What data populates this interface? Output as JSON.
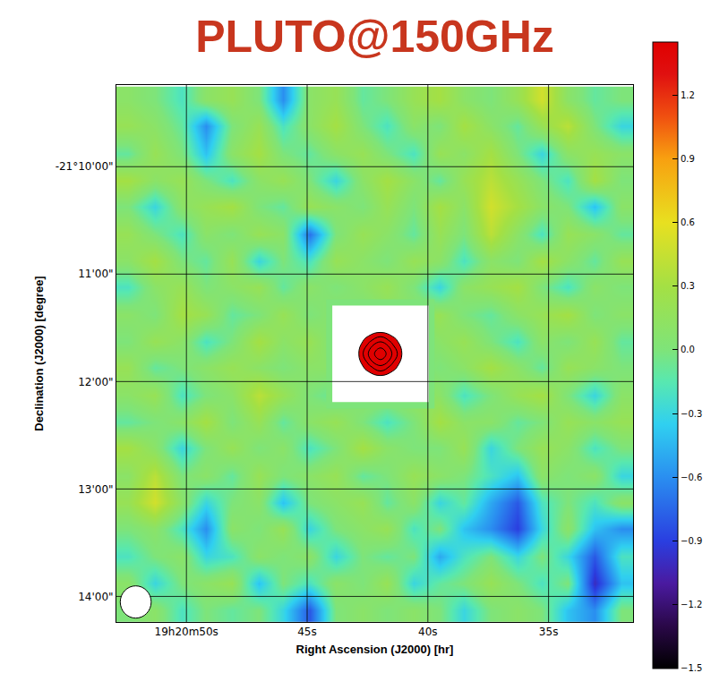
{
  "chart_data": {
    "type": "heatmap",
    "title": "PLUTO@150GHz",
    "x_label": "Right Ascension (J2000) [hr]",
    "y_label": "Declination (J2000) [degree]",
    "xlim": [
      52.9,
      31.5
    ],
    "ylim": [
      -21.2373,
      -21.154
    ],
    "xticks": [
      {
        "value": 50,
        "label": "19h20m50s"
      },
      {
        "value": 45,
        "label": "45s"
      },
      {
        "value": 40,
        "label": "40s"
      },
      {
        "value": 35,
        "label": "35s"
      }
    ],
    "yticks": [
      {
        "value": -21.166667,
        "label": "-21°10'00\""
      },
      {
        "value": -21.183333,
        "label": "11'00\""
      },
      {
        "value": -21.2,
        "label": "12'00\""
      },
      {
        "value": -21.216667,
        "label": "13'00\""
      },
      {
        "value": -21.233333,
        "label": "14'00\""
      }
    ],
    "grid": true,
    "x": [
      52.4,
      51.3,
      50.2,
      49.2,
      48.1,
      47.0,
      46.0,
      44.9,
      43.8,
      42.7,
      41.7,
      40.6,
      39.5,
      38.5,
      37.4,
      36.3,
      35.3,
      34.2,
      33.1,
      32.0
    ],
    "y": [
      -21.1563,
      -21.1604,
      -21.1646,
      -21.1688,
      -21.1729,
      -21.1771,
      -21.1813,
      -21.1854,
      -21.1896,
      -21.1938,
      -21.1979,
      -21.2021,
      -21.2063,
      -21.2104,
      -21.2146,
      -21.2188,
      -21.2229,
      -21.2271,
      -21.2313,
      -21.2354
    ],
    "z": [
      [
        0.1,
        0.0,
        -0.2,
        0.1,
        0.2,
        0.0,
        -0.6,
        0.1,
        0.2,
        -0.1,
        0.0,
        0.2,
        0.3,
        0.1,
        0.0,
        0.2,
        0.5,
        0.1,
        -0.1,
        0.0
      ],
      [
        0.2,
        0.1,
        -0.1,
        -0.6,
        0.0,
        0.2,
        -0.2,
        0.1,
        0.3,
        0.0,
        -0.2,
        0.1,
        0.0,
        0.3,
        0.1,
        -0.1,
        0.2,
        0.4,
        0.0,
        -0.3
      ],
      [
        -0.1,
        0.2,
        0.0,
        -0.4,
        0.1,
        0.3,
        0.0,
        -0.1,
        0.1,
        0.2,
        0.0,
        -0.2,
        0.2,
        0.1,
        0.3,
        0.0,
        -0.3,
        0.1,
        0.2,
        0.1
      ],
      [
        0.3,
        0.1,
        0.2,
        0.0,
        -0.2,
        0.1,
        0.2,
        0.0,
        -0.3,
        0.1,
        0.3,
        0.1,
        -0.1,
        0.2,
        0.4,
        0.2,
        0.0,
        -0.2,
        0.3,
        0.0
      ],
      [
        0.0,
        -0.3,
        0.1,
        0.2,
        0.3,
        0.0,
        -0.1,
        0.2,
        0.1,
        0.0,
        0.2,
        0.0,
        0.3,
        0.1,
        0.5,
        0.3,
        0.1,
        0.0,
        -0.4,
        0.1
      ],
      [
        0.2,
        0.0,
        -0.2,
        0.1,
        0.0,
        0.2,
        0.1,
        -0.7,
        0.0,
        0.2,
        0.1,
        -0.1,
        0.2,
        0.0,
        0.4,
        0.1,
        -0.2,
        0.2,
        0.1,
        -0.1
      ],
      [
        0.1,
        0.3,
        0.0,
        -0.1,
        0.2,
        -0.3,
        0.0,
        -0.2,
        0.2,
        0.1,
        0.0,
        0.2,
        0.1,
        -0.2,
        0.1,
        0.0,
        0.3,
        0.1,
        -0.1,
        0.2
      ],
      [
        -0.2,
        0.1,
        0.2,
        0.0,
        0.1,
        0.2,
        -0.1,
        0.1,
        0.0,
        0.1,
        0.2,
        0.0,
        -0.3,
        0.1,
        0.2,
        0.3,
        0.0,
        -0.2,
        0.1,
        0.0
      ],
      [
        0.1,
        0.0,
        0.3,
        0.2,
        -0.1,
        0.0,
        0.2,
        0.0,
        0.1,
        0.0,
        0.1,
        0.1,
        0.2,
        0.0,
        -0.1,
        0.1,
        0.2,
        0.3,
        0.0,
        0.1
      ],
      [
        0.0,
        0.2,
        0.1,
        -0.2,
        0.0,
        0.3,
        0.1,
        0.2,
        0.0,
        0.0,
        0.0,
        0.0,
        0.1,
        0.2,
        0.0,
        -0.2,
        0.1,
        0.0,
        0.2,
        -0.1
      ],
      [
        0.2,
        -0.1,
        0.0,
        0.1,
        0.2,
        0.1,
        0.0,
        0.1,
        0.1,
        0.0,
        0.0,
        0.1,
        0.0,
        0.1,
        0.3,
        0.1,
        -0.1,
        0.2,
        0.1,
        0.0
      ],
      [
        0.1,
        0.2,
        -0.2,
        0.0,
        0.1,
        0.4,
        0.2,
        0.0,
        -0.1,
        0.1,
        0.1,
        0.2,
        0.1,
        -0.2,
        0.0,
        0.2,
        0.3,
        0.0,
        -0.3,
        0.1
      ],
      [
        -0.1,
        0.0,
        0.1,
        0.3,
        0.0,
        0.2,
        -0.1,
        0.1,
        0.2,
        0.0,
        -0.2,
        0.0,
        0.3,
        0.1,
        0.1,
        -0.1,
        0.0,
        0.2,
        0.1,
        0.2
      ],
      [
        0.3,
        0.1,
        -0.3,
        0.0,
        0.2,
        0.0,
        0.1,
        -0.2,
        0.0,
        0.3,
        0.1,
        0.0,
        0.0,
        0.2,
        -0.3,
        0.0,
        0.2,
        0.1,
        -0.2,
        0.0
      ],
      [
        0.1,
        0.4,
        0.0,
        0.1,
        -0.1,
        0.2,
        0.0,
        0.1,
        0.2,
        -0.1,
        0.0,
        0.2,
        0.1,
        0.0,
        -0.2,
        -0.4,
        0.1,
        0.0,
        0.1,
        -0.3
      ],
      [
        0.2,
        0.5,
        0.1,
        -0.3,
        0.0,
        0.1,
        -0.4,
        0.0,
        0.1,
        0.2,
        -0.1,
        0.1,
        -0.3,
        -0.1,
        -0.5,
        -0.8,
        -0.2,
        0.0,
        -0.2,
        0.1
      ],
      [
        0.0,
        0.1,
        -0.2,
        -0.6,
        0.1,
        0.0,
        0.2,
        -0.3,
        0.0,
        0.1,
        0.2,
        -0.2,
        0.0,
        -0.4,
        -0.6,
        -0.9,
        -0.3,
        0.1,
        -0.4,
        -0.6
      ],
      [
        -0.2,
        0.0,
        0.1,
        -0.3,
        -0.2,
        0.1,
        0.0,
        0.1,
        -0.3,
        0.0,
        -0.1,
        0.0,
        -0.5,
        -0.2,
        0.0,
        -0.3,
        0.0,
        -0.3,
        -0.8,
        -0.2
      ],
      [
        0.1,
        -0.3,
        0.0,
        0.1,
        0.2,
        -0.4,
        0.0,
        -0.2,
        0.1,
        0.0,
        0.2,
        -0.3,
        -0.1,
        0.0,
        0.2,
        0.0,
        -0.2,
        0.0,
        -1.0,
        -0.4
      ],
      [
        0.0,
        0.1,
        -0.2,
        0.0,
        -0.1,
        0.0,
        -0.3,
        -0.8,
        0.0,
        0.1,
        0.0,
        0.1,
        0.0,
        -0.3,
        0.0,
        0.1,
        0.0,
        -0.4,
        -0.6,
        0.0
      ]
    ],
    "source": {
      "x": [
        43.96,
        43.46,
        42.96,
        42.46,
        41.96,
        41.46,
        40.96,
        40.46,
        39.96
      ],
      "y": [
        -21.1882,
        -21.1901,
        -21.192,
        -21.1938,
        -21.1957,
        -21.1976,
        -21.1995,
        -21.2013,
        -21.2032
      ],
      "z": [
        [
          0.0,
          0.0,
          0.0,
          0.0,
          0.0,
          0.0,
          0.0,
          0.0,
          0.0
        ],
        [
          0.0,
          0.0,
          0.01,
          0.04,
          0.08,
          0.04,
          0.01,
          0.0,
          0.0
        ],
        [
          0.0,
          0.01,
          0.12,
          0.52,
          0.85,
          0.5,
          0.1,
          0.01,
          0.0
        ],
        [
          0.0,
          0.05,
          0.52,
          2.3,
          3.7,
          2.2,
          0.47,
          0.04,
          0.0
        ],
        [
          0.0,
          0.08,
          0.86,
          3.8,
          6.2,
          3.6,
          0.8,
          0.07,
          0.0
        ],
        [
          0.0,
          0.04,
          0.5,
          2.25,
          3.65,
          2.15,
          0.46,
          0.03,
          0.0
        ],
        [
          0.0,
          0.01,
          0.11,
          0.48,
          0.8,
          0.47,
          0.1,
          0.01,
          0.0
        ],
        [
          0.0,
          0.0,
          0.01,
          0.04,
          0.07,
          0.03,
          0.01,
          0.0,
          0.0
        ],
        [
          0.0,
          0.0,
          0.0,
          0.0,
          0.0,
          0.0,
          0.0,
          0.0,
          0.0
        ]
      ]
    },
    "contour_levels": [
      2.5,
      3.75,
      5.0
    ],
    "colorbar_range": [
      -1.5,
      1.45
    ],
    "colorbar_ticks": [
      1.2,
      0.9,
      0.6,
      0.3,
      {
        "value": 0,
        "label": "0.0"
      },
      {
        "value": -0.3,
        "label": "−0.3"
      },
      {
        "value": -0.6,
        "label": "−0.6"
      },
      {
        "value": -0.9,
        "label": "−0.9"
      },
      {
        "value": -1.2,
        "label": "−1.2"
      },
      {
        "value": -1.5,
        "label": "−1.5"
      }
    ],
    "beam": {
      "x": 52.1,
      "y": -21.2342,
      "width": 1.28,
      "height": 0.005
    }
  }
}
